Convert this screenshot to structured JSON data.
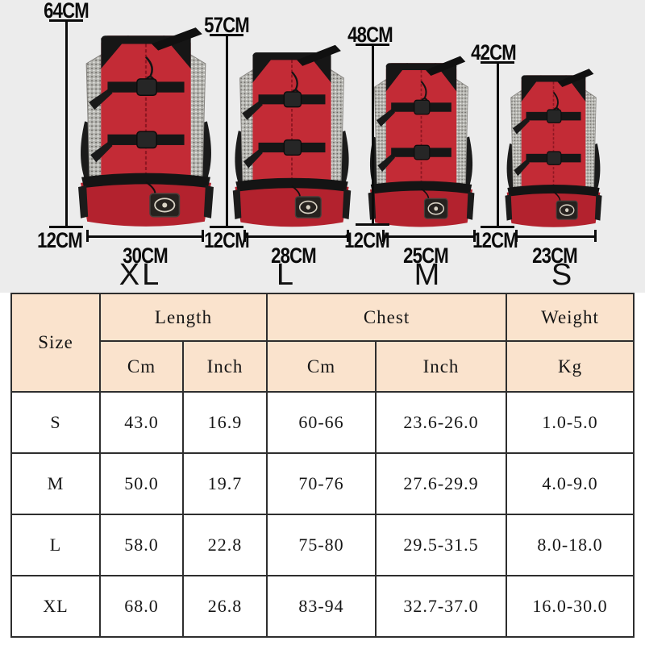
{
  "diagram": {
    "bags": [
      {
        "size_label": "XL",
        "height": "64CM",
        "bottom_height": "12CM",
        "width": "30CM"
      },
      {
        "size_label": "L",
        "height": "57CM",
        "bottom_height": "12CM",
        "width": "28CM"
      },
      {
        "size_label": "M",
        "height": "48CM",
        "bottom_height": "12CM",
        "width": "25CM"
      },
      {
        "size_label": "S",
        "height": "42CM",
        "bottom_height": "12CM",
        "width": "23CM"
      }
    ],
    "colors": {
      "background": "#ececec",
      "bag_red": "#c32b36",
      "bag_red_dark": "#b3222e",
      "strap_black": "#161616",
      "mesh_gray": "#b5b5b0"
    }
  },
  "table": {
    "colors": {
      "header_bg": "#fae3cd",
      "body_bg": "#ffffff",
      "border": "#2e2e2e"
    },
    "headers": {
      "size": "Size",
      "length": "Length",
      "chest": "Chest",
      "weight": "Weight",
      "length_cm": "Cm",
      "length_inch": "Inch",
      "chest_cm": "Cm",
      "chest_inch": "Inch",
      "weight_kg": "Kg"
    },
    "rows": [
      {
        "size": "S",
        "length_cm": "43.0",
        "length_inch": "16.9",
        "chest_cm": "60-66",
        "chest_inch": "23.6-26.0",
        "weight_kg": "1.0-5.0"
      },
      {
        "size": "M",
        "length_cm": "50.0",
        "length_inch": "19.7",
        "chest_cm": "70-76",
        "chest_inch": "27.6-29.9",
        "weight_kg": "4.0-9.0"
      },
      {
        "size": "L",
        "length_cm": "58.0",
        "length_inch": "22.8",
        "chest_cm": "75-80",
        "chest_inch": "29.5-31.5",
        "weight_kg": "8.0-18.0"
      },
      {
        "size": "XL",
        "length_cm": "68.0",
        "length_inch": "26.8",
        "chest_cm": "83-94",
        "chest_inch": "32.7-37.0",
        "weight_kg": "16.0-30.0"
      }
    ]
  },
  "chart_data": {
    "type": "table",
    "columns": [
      "Size",
      "Length Cm",
      "Length Inch",
      "Chest Cm",
      "Chest Inch",
      "Weight Kg"
    ],
    "rows": [
      [
        "S",
        "43.0",
        "16.9",
        "60-66",
        "23.6-26.0",
        "1.0-5.0"
      ],
      [
        "M",
        "50.0",
        "19.7",
        "70-76",
        "27.6-29.9",
        "4.0-9.0"
      ],
      [
        "L",
        "58.0",
        "22.8",
        "75-80",
        "29.5-31.5",
        "8.0-18.0"
      ],
      [
        "XL",
        "68.0",
        "26.8",
        "83-94",
        "32.7-37.0",
        "16.0-30.0"
      ]
    ],
    "product_dimensions": [
      {
        "size": "XL",
        "height_cm": 64,
        "base_height_cm": 12,
        "width_cm": 30
      },
      {
        "size": "L",
        "height_cm": 57,
        "base_height_cm": 12,
        "width_cm": 28
      },
      {
        "size": "M",
        "height_cm": 48,
        "base_height_cm": 12,
        "width_cm": 25
      },
      {
        "size": "S",
        "height_cm": 42,
        "base_height_cm": 12,
        "width_cm": 23
      }
    ]
  }
}
